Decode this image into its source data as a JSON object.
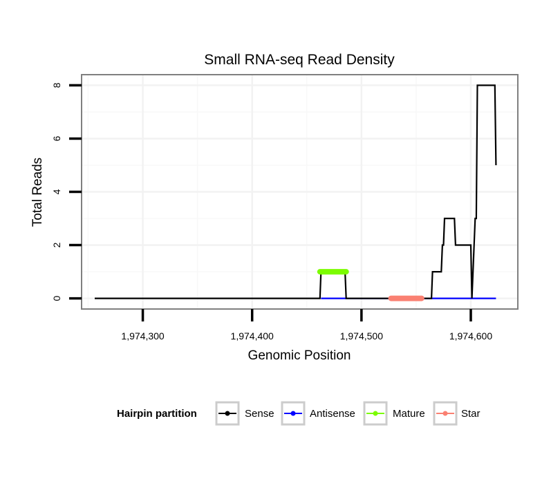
{
  "chart_data": {
    "type": "line",
    "title": "Small RNA-seq Read Density",
    "xlabel": "Genomic Position",
    "ylabel": "Total Reads",
    "xlim": [
      1974244,
      1974643
    ],
    "ylim": [
      -0.4,
      8.4
    ],
    "x_ticks": [
      1974300,
      1974400,
      1974500,
      1974600
    ],
    "x_tick_labels": [
      "1,974,300",
      "1,974,400",
      "1,974,500",
      "1,974,600"
    ],
    "y_ticks": [
      0,
      2,
      4,
      6,
      8
    ],
    "y_tick_labels": [
      "0",
      "2",
      "4",
      "6",
      "8"
    ],
    "grid": true,
    "legend": {
      "title": "Hairpin partition",
      "position": "bottom",
      "entries": [
        "Sense",
        "Antisense",
        "Mature",
        "Star"
      ]
    },
    "series": [
      {
        "name": "Sense",
        "color": "#000000",
        "x": [
          1974256,
          1974462,
          1974463,
          1974485,
          1974486,
          1974564,
          1974565,
          1974573,
          1974574,
          1974575,
          1974576,
          1974585,
          1974586,
          1974600,
          1974601,
          1974604,
          1974605,
          1974606,
          1974607,
          1974622,
          1974623
        ],
        "y": [
          0,
          0,
          1,
          1,
          0,
          0,
          1,
          1,
          2,
          2,
          3,
          3,
          2,
          2,
          0,
          3,
          3,
          8,
          8,
          8,
          5
        ]
      },
      {
        "name": "Antisense",
        "color": "#0000ff",
        "x": [
          1974463,
          1974623
        ],
        "y": [
          0,
          0
        ]
      },
      {
        "name": "Mature",
        "color": "#7cfc00",
        "x": [
          1974462,
          1974486
        ],
        "y": [
          1,
          1
        ]
      },
      {
        "name": "Star",
        "color": "#fa8072",
        "x": [
          1974527,
          1974555
        ],
        "y": [
          0,
          0
        ]
      }
    ]
  }
}
